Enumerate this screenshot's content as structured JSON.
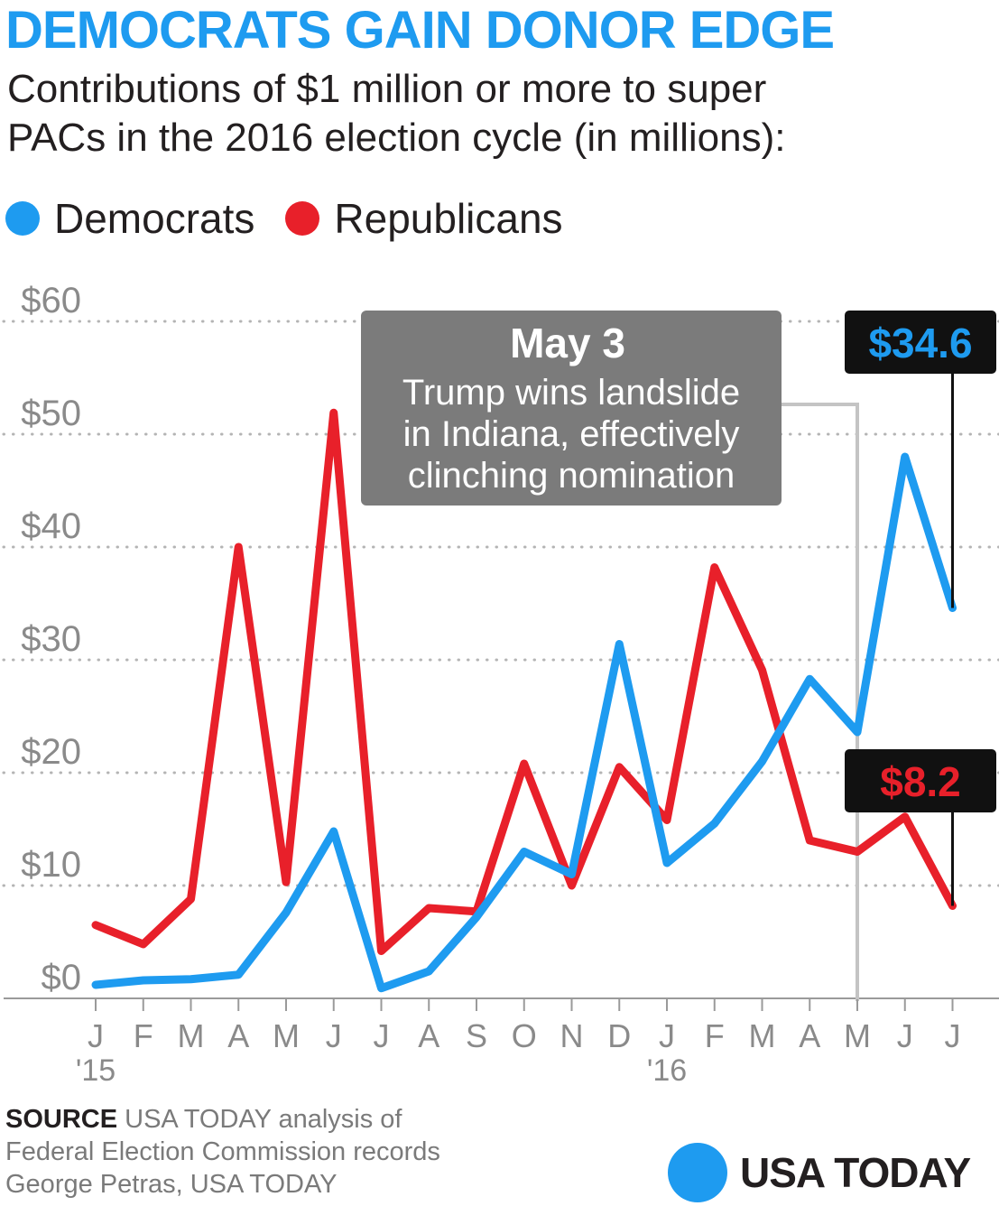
{
  "title": "DEMOCRATS GAIN DONOR EDGE",
  "subtitle_line1": "Contributions of $1 million or more to super",
  "subtitle_line2": "PACs in the 2016 election cycle (in millions):",
  "colors": {
    "title": "#1e9bf0",
    "democrats": "#1e9bf0",
    "republicans": "#e8202a",
    "grid": "#b4b4b4",
    "annotation_box": "#7b7b7b",
    "annotation_line": "#c4c4c4",
    "label_box": "#111111"
  },
  "legend": [
    {
      "label": "Democrats",
      "color": "#1e9bf0"
    },
    {
      "label": "Republicans",
      "color": "#e8202a"
    }
  ],
  "chart_data": {
    "type": "line",
    "categories": [
      "J",
      "F",
      "M",
      "A",
      "M",
      "J",
      "J",
      "A",
      "S",
      "O",
      "N",
      "D",
      "J",
      "F",
      "M",
      "A",
      "M",
      "J",
      "J"
    ],
    "year_labels": [
      {
        "index": 0,
        "label": "'15"
      },
      {
        "index": 12,
        "label": "'16"
      }
    ],
    "series": [
      {
        "name": "Democrats",
        "color": "#1e9bf0",
        "values": [
          1.2,
          1.6,
          1.7,
          2.1,
          7.6,
          14.8,
          0.9,
          2.4,
          7.2,
          13,
          11,
          31.4,
          12,
          15.5,
          21,
          28.3,
          23.6,
          48,
          34.6
        ]
      },
      {
        "name": "Republicans",
        "color": "#e8202a",
        "values": [
          6.5,
          4.8,
          8.8,
          40,
          10.3,
          51.9,
          4.2,
          8,
          7.7,
          20.8,
          10,
          20.5,
          15.8,
          38.2,
          29.1,
          14,
          13,
          16.1,
          8.2
        ]
      }
    ],
    "y_ticks": [
      0,
      10,
      20,
      30,
      40,
      50,
      60
    ],
    "y_tick_labels": [
      "$0",
      "$10",
      "$20",
      "$30",
      "$40",
      "$50",
      "$60"
    ],
    "ylim": [
      0,
      62
    ],
    "grid": true,
    "end_labels": [
      {
        "series": "Democrats",
        "label": "$34.6"
      },
      {
        "series": "Republicans",
        "label": "$8.2"
      }
    ],
    "annotation": {
      "index": 16,
      "heading": "May 3",
      "lines": [
        "Trump wins landslide",
        "in Indiana, effectively",
        "clinching nomination"
      ]
    }
  },
  "footer": {
    "source_label": "SOURCE",
    "source_text": "USA TODAY analysis of",
    "source_text2": "Federal Election Commission records",
    "credit": "George Petras, USA TODAY"
  },
  "logo": {
    "text": "USA TODAY",
    "color": "#1e9bf0"
  }
}
